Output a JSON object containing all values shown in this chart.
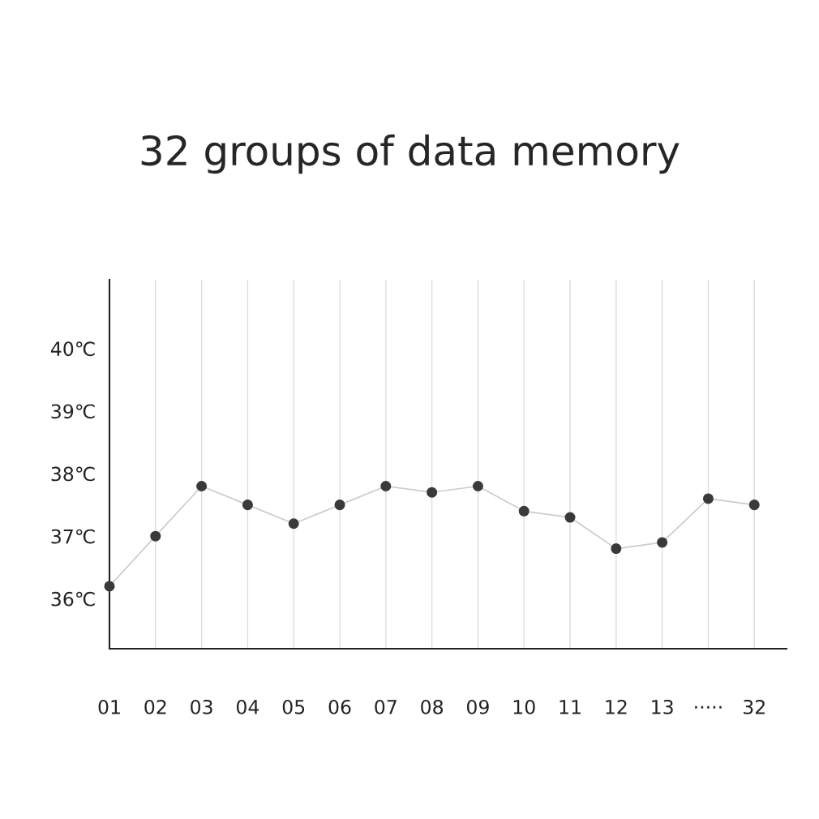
{
  "chart_data": {
    "type": "line",
    "title": "32 groups of data memory",
    "categories": [
      "01",
      "02",
      "03",
      "04",
      "05",
      "06",
      "07",
      "08",
      "09",
      "10",
      "11",
      "12",
      "13",
      "·····",
      "32"
    ],
    "series": [
      {
        "color": "#cccccc",
        "values": [
          36.2,
          37.0,
          37.8,
          37.5,
          37.2,
          37.5,
          37.8,
          37.7,
          37.8,
          37.4,
          37.3,
          36.8,
          36.9,
          37.6,
          37.5
        ]
      }
    ],
    "marker": "circle",
    "line_style": "solid",
    "ylim": [
      35.2,
      41.1
    ],
    "yticks": [
      {
        "value": 36,
        "label": "36℃"
      },
      {
        "value": 37,
        "label": "37℃"
      },
      {
        "value": 38,
        "label": "38℃"
      },
      {
        "value": 39,
        "label": "39℃"
      },
      {
        "value": 40,
        "label": "40℃"
      }
    ],
    "grid": "x",
    "legend": false
  }
}
